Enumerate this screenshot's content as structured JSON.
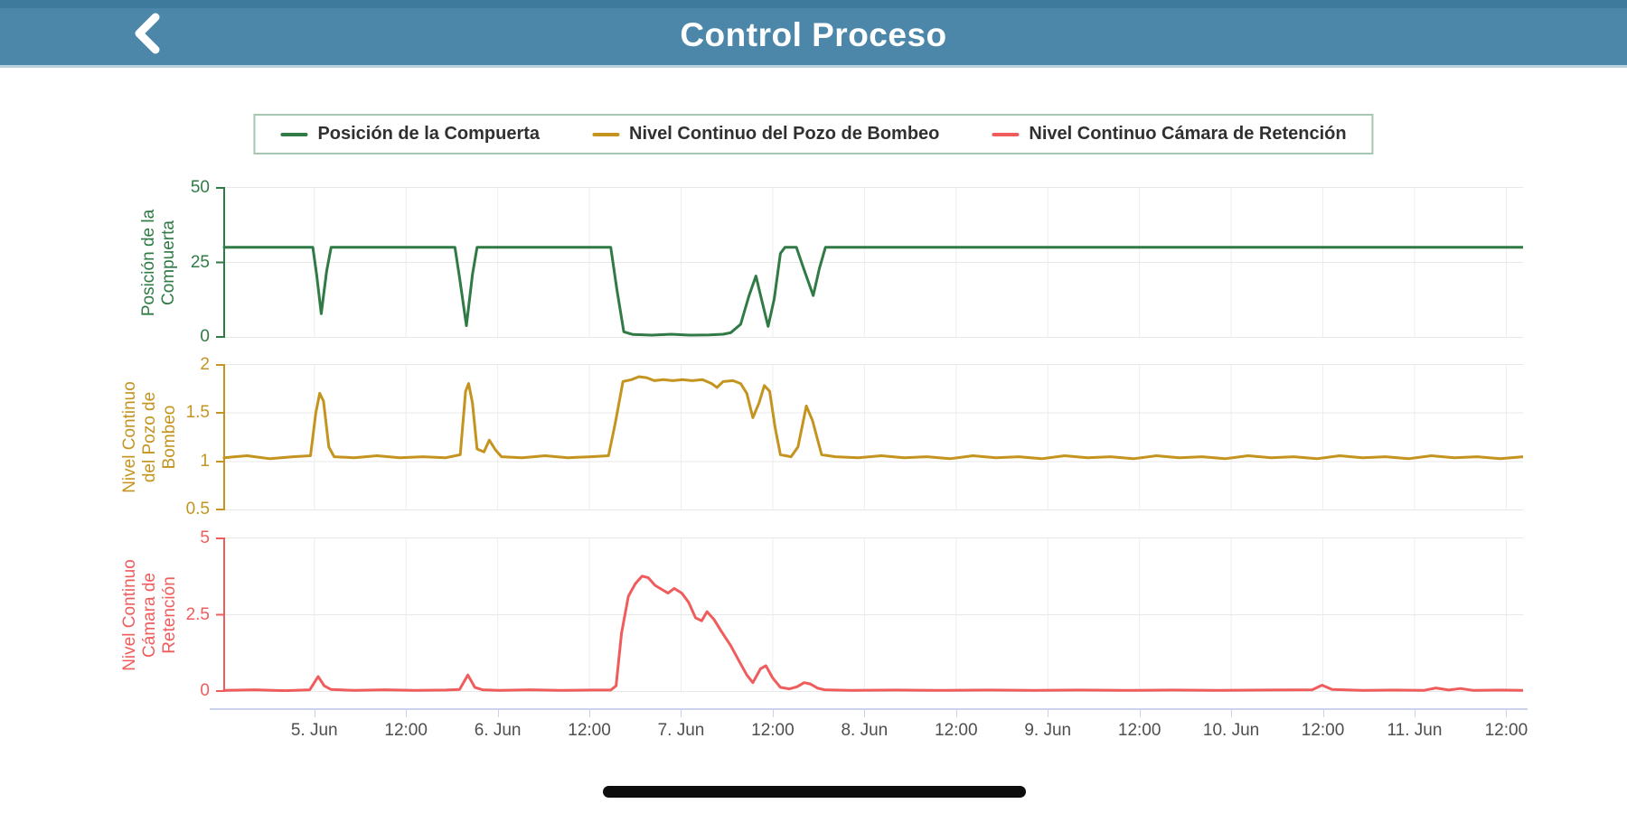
{
  "header": {
    "title": "Control Proceso",
    "back_icon": "chevron-left",
    "bar_color": "#4c87a9"
  },
  "legend": {
    "items": [
      {
        "label": "Posición de la Compuerta",
        "color": "#2f7a45"
      },
      {
        "label": "Nivel Continuo del Pozo de Bombeo",
        "color": "#c4941f"
      },
      {
        "label": "Nivel Continuo Cámara de Retención",
        "color": "#f05c5c"
      }
    ]
  },
  "chart_data": {
    "type": "line",
    "title": "",
    "xlabel": "",
    "x_ticks": [
      {
        "t": 11.8,
        "label": "5. Jun"
      },
      {
        "t": 23.8,
        "label": "12:00"
      },
      {
        "t": 35.8,
        "label": "6. Jun"
      },
      {
        "t": 47.8,
        "label": "12:00"
      },
      {
        "t": 59.8,
        "label": "7. Jun"
      },
      {
        "t": 71.8,
        "label": "12:00"
      },
      {
        "t": 83.8,
        "label": "8. Jun"
      },
      {
        "t": 95.8,
        "label": "12:00"
      },
      {
        "t": 107.8,
        "label": "9. Jun"
      },
      {
        "t": 119.8,
        "label": "12:00"
      },
      {
        "t": 131.8,
        "label": "10. Jun"
      },
      {
        "t": 143.8,
        "label": "12:00"
      },
      {
        "t": 155.8,
        "label": "11. Jun"
      },
      {
        "t": 167.8,
        "label": "12:00"
      }
    ],
    "t_range": [
      0,
      170
    ],
    "charts": [
      {
        "name": "Posición de la Compuerta",
        "ylabel": "Posición de la\nCompuerta",
        "color": "#2f7a45",
        "ylim": [
          0,
          50
        ],
        "yticks": [
          {
            "v": 50,
            "label": "50"
          },
          {
            "v": 25,
            "label": "25"
          },
          {
            "v": 0,
            "label": "0"
          }
        ],
        "points": [
          [
            0,
            30
          ],
          [
            11.6,
            30
          ],
          [
            12.1,
            21
          ],
          [
            12.7,
            8
          ],
          [
            13.4,
            22
          ],
          [
            14,
            30
          ],
          [
            30.2,
            30
          ],
          [
            30.8,
            20
          ],
          [
            31.7,
            4
          ],
          [
            32.5,
            21
          ],
          [
            33.1,
            30
          ],
          [
            50.6,
            30
          ],
          [
            51.4,
            16
          ],
          [
            52.3,
            2
          ],
          [
            53.5,
            1.1
          ],
          [
            56,
            0.9
          ],
          [
            58.5,
            1.2
          ],
          [
            61,
            0.9
          ],
          [
            63.5,
            1
          ],
          [
            65.3,
            1.2
          ],
          [
            66.3,
            1.7
          ],
          [
            67.6,
            4.5
          ],
          [
            68.7,
            14
          ],
          [
            69.6,
            20.5
          ],
          [
            70.4,
            12
          ],
          [
            71.2,
            3.8
          ],
          [
            72,
            13
          ],
          [
            72.8,
            28
          ],
          [
            73.4,
            30
          ],
          [
            74.9,
            30
          ],
          [
            75.7,
            24
          ],
          [
            77.1,
            14
          ],
          [
            77.9,
            23
          ],
          [
            78.7,
            30
          ],
          [
            170,
            30
          ]
        ]
      },
      {
        "name": "Nivel Continuo del Pozo de Bombeo",
        "ylabel": "Nivel Continuo\ndel Pozo de\nBombeo",
        "color": "#c4941f",
        "ylim": [
          0.5,
          2
        ],
        "yticks": [
          {
            "v": 2,
            "label": "2"
          },
          {
            "v": 1.5,
            "label": "1.5"
          },
          {
            "v": 1,
            "label": "1"
          },
          {
            "v": 0.5,
            "label": "0.5"
          }
        ],
        "points": [
          [
            0,
            1.04
          ],
          [
            3,
            1.06
          ],
          [
            6,
            1.03
          ],
          [
            9,
            1.05
          ],
          [
            11.3,
            1.06
          ],
          [
            12,
            1.5
          ],
          [
            12.5,
            1.7
          ],
          [
            13,
            1.62
          ],
          [
            13.7,
            1.15
          ],
          [
            14.4,
            1.05
          ],
          [
            17,
            1.04
          ],
          [
            20,
            1.06
          ],
          [
            23,
            1.04
          ],
          [
            26,
            1.05
          ],
          [
            29,
            1.04
          ],
          [
            30.9,
            1.07
          ],
          [
            31.6,
            1.72
          ],
          [
            32,
            1.8
          ],
          [
            32.5,
            1.6
          ],
          [
            33.1,
            1.13
          ],
          [
            34,
            1.1
          ],
          [
            34.7,
            1.22
          ],
          [
            35.5,
            1.12
          ],
          [
            36.3,
            1.05
          ],
          [
            39,
            1.04
          ],
          [
            42,
            1.06
          ],
          [
            45,
            1.04
          ],
          [
            48,
            1.05
          ],
          [
            50.3,
            1.06
          ],
          [
            51.2,
            1.4
          ],
          [
            52.2,
            1.82
          ],
          [
            53.3,
            1.84
          ],
          [
            54.3,
            1.87
          ],
          [
            55.3,
            1.86
          ],
          [
            56.3,
            1.83
          ],
          [
            57.5,
            1.84
          ],
          [
            58.7,
            1.83
          ],
          [
            60,
            1.84
          ],
          [
            61.3,
            1.83
          ],
          [
            62.6,
            1.84
          ],
          [
            63.8,
            1.8
          ],
          [
            64.5,
            1.76
          ],
          [
            65.3,
            1.82
          ],
          [
            66.6,
            1.83
          ],
          [
            67.6,
            1.8
          ],
          [
            68.4,
            1.7
          ],
          [
            69.2,
            1.45
          ],
          [
            70,
            1.6
          ],
          [
            70.7,
            1.78
          ],
          [
            71.4,
            1.72
          ],
          [
            72.1,
            1.35
          ],
          [
            72.8,
            1.07
          ],
          [
            74.2,
            1.05
          ],
          [
            75.1,
            1.15
          ],
          [
            76.2,
            1.57
          ],
          [
            77,
            1.42
          ],
          [
            78.2,
            1.07
          ],
          [
            80,
            1.05
          ],
          [
            83,
            1.04
          ],
          [
            86,
            1.06
          ],
          [
            89,
            1.04
          ],
          [
            92,
            1.05
          ],
          [
            95,
            1.03
          ],
          [
            98,
            1.06
          ],
          [
            101,
            1.04
          ],
          [
            104,
            1.05
          ],
          [
            107,
            1.03
          ],
          [
            110,
            1.06
          ],
          [
            113,
            1.04
          ],
          [
            116,
            1.05
          ],
          [
            119,
            1.03
          ],
          [
            122,
            1.06
          ],
          [
            125,
            1.04
          ],
          [
            128,
            1.05
          ],
          [
            131,
            1.03
          ],
          [
            134,
            1.06
          ],
          [
            137,
            1.04
          ],
          [
            140,
            1.05
          ],
          [
            143,
            1.03
          ],
          [
            146,
            1.06
          ],
          [
            149,
            1.04
          ],
          [
            152,
            1.05
          ],
          [
            155,
            1.03
          ],
          [
            158,
            1.06
          ],
          [
            161,
            1.04
          ],
          [
            164,
            1.05
          ],
          [
            167,
            1.03
          ],
          [
            170,
            1.05
          ]
        ]
      },
      {
        "name": "Nivel Continuo Cámara de Retención",
        "ylabel": "Nivel Continuo\nCámara de\nRetención",
        "color": "#f05c5c",
        "ylim": [
          0,
          5
        ],
        "yticks": [
          {
            "v": 5,
            "label": "5"
          },
          {
            "v": 2.5,
            "label": "2.5"
          },
          {
            "v": 0,
            "label": "0"
          }
        ],
        "points": [
          [
            0,
            0.05
          ],
          [
            4,
            0.07
          ],
          [
            8,
            0.04
          ],
          [
            11.2,
            0.07
          ],
          [
            12.3,
            0.5
          ],
          [
            13.1,
            0.2
          ],
          [
            14,
            0.08
          ],
          [
            17,
            0.05
          ],
          [
            21,
            0.07
          ],
          [
            25,
            0.05
          ],
          [
            29,
            0.06
          ],
          [
            30.8,
            0.08
          ],
          [
            31.9,
            0.55
          ],
          [
            32.8,
            0.15
          ],
          [
            33.8,
            0.07
          ],
          [
            36,
            0.05
          ],
          [
            40,
            0.07
          ],
          [
            44,
            0.05
          ],
          [
            48,
            0.06
          ],
          [
            50.6,
            0.06
          ],
          [
            51.3,
            0.2
          ],
          [
            52,
            1.9
          ],
          [
            52.9,
            3.1
          ],
          [
            53.8,
            3.5
          ],
          [
            54.7,
            3.75
          ],
          [
            55.5,
            3.7
          ],
          [
            56.4,
            3.45
          ],
          [
            57.4,
            3.3
          ],
          [
            58.1,
            3.2
          ],
          [
            58.9,
            3.35
          ],
          [
            59.9,
            3.2
          ],
          [
            60.8,
            2.9
          ],
          [
            61.7,
            2.4
          ],
          [
            62.5,
            2.3
          ],
          [
            63.2,
            2.6
          ],
          [
            64.1,
            2.35
          ],
          [
            65.1,
            1.95
          ],
          [
            66.3,
            1.5
          ],
          [
            67.4,
            1
          ],
          [
            68.4,
            0.55
          ],
          [
            69.2,
            0.3
          ],
          [
            70.2,
            0.75
          ],
          [
            70.9,
            0.85
          ],
          [
            71.8,
            0.45
          ],
          [
            72.8,
            0.15
          ],
          [
            74,
            0.1
          ],
          [
            75,
            0.17
          ],
          [
            75.9,
            0.3
          ],
          [
            76.7,
            0.26
          ],
          [
            77.7,
            0.12
          ],
          [
            78.6,
            0.07
          ],
          [
            82,
            0.05
          ],
          [
            88,
            0.06
          ],
          [
            94,
            0.05
          ],
          [
            100,
            0.06
          ],
          [
            106,
            0.05
          ],
          [
            112,
            0.06
          ],
          [
            118,
            0.05
          ],
          [
            124,
            0.06
          ],
          [
            130,
            0.05
          ],
          [
            136,
            0.06
          ],
          [
            142.4,
            0.07
          ],
          [
            143.7,
            0.22
          ],
          [
            145,
            0.08
          ],
          [
            149,
            0.05
          ],
          [
            153,
            0.06
          ],
          [
            157,
            0.05
          ],
          [
            158.6,
            0.13
          ],
          [
            160.3,
            0.06
          ],
          [
            161.8,
            0.11
          ],
          [
            163.5,
            0.05
          ],
          [
            167,
            0.06
          ],
          [
            170,
            0.05
          ]
        ]
      }
    ]
  },
  "footer": {
    "home_indicator_icon": "home-indicator-bar"
  }
}
